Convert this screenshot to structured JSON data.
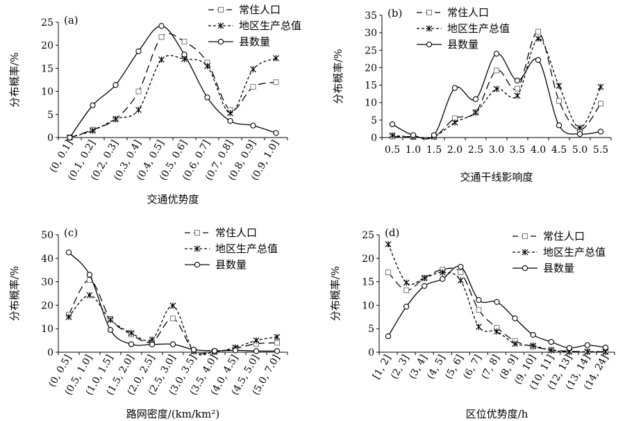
{
  "chart_data": [
    {
      "type": "line",
      "panel_label": "(a)",
      "xlabel": "交通优势度",
      "ylabel": "分布概率/%",
      "ylim": [
        0,
        25
      ],
      "yticks": [
        0,
        5,
        10,
        15,
        20,
        25
      ],
      "categories": [
        "(0, 0.1]",
        "(0.1, 0.2]",
        "(0.2, 0.3]",
        "(0.3, 0.4]",
        "(0.4, 0.5]",
        "(0.5, 0.6]",
        "(0.6, 0.7]",
        "(0.7, 0.8]",
        "(0.8, 0.9]",
        "(0.9, 1.0]"
      ],
      "rotate_ticks": true,
      "legend_position": "top-right",
      "series": [
        {
          "name": "常住人口",
          "values": [
            0,
            1.7,
            4.0,
            10.0,
            21.8,
            20.8,
            16.3,
            6.0,
            11.0,
            12.0
          ]
        },
        {
          "name": "地区生产总值",
          "values": [
            0,
            1.5,
            4.0,
            6.0,
            16.9,
            17.0,
            15.5,
            5.3,
            14.8,
            17.2
          ]
        },
        {
          "name": "县数量",
          "values": [
            0,
            7.0,
            11.4,
            18.7,
            24.2,
            18.0,
            8.7,
            3.6,
            2.6,
            1.0
          ]
        }
      ]
    },
    {
      "type": "line",
      "panel_label": "(b)",
      "xlabel": "交通干线影响度",
      "ylabel": "分布概率/%",
      "ylim": [
        0,
        35
      ],
      "yticks": [
        0,
        5,
        10,
        15,
        20,
        25,
        30,
        35
      ],
      "categories": [
        "0.5",
        "1.0",
        "1.5",
        "2.0",
        "2.5",
        "3.0",
        "3.5",
        "4.0",
        "4.5",
        "5.0",
        "5.5"
      ],
      "rotate_ticks": false,
      "legend_position": "top-left",
      "series": [
        {
          "name": "常住人口",
          "values": [
            0.3,
            0.2,
            0.2,
            5.5,
            7.2,
            19.2,
            14.0,
            30.3,
            10.5,
            2.2,
            9.7
          ]
        },
        {
          "name": "地区生产总值",
          "values": [
            0.6,
            0.2,
            0.3,
            4.3,
            7.2,
            13.9,
            12.0,
            28.3,
            14.8,
            2.8,
            14.5
          ]
        },
        {
          "name": "县数量",
          "values": [
            3.8,
            0.7,
            0.7,
            14.2,
            11.0,
            24.0,
            16.3,
            22.2,
            3.5,
            1.0,
            1.7
          ]
        }
      ]
    },
    {
      "type": "line",
      "panel_label": "(c)",
      "xlabel": "路网密度/(km/km²)",
      "ylabel": "分布概率/%",
      "ylim": [
        0,
        50
      ],
      "yticks": [
        0,
        10,
        20,
        30,
        40,
        50
      ],
      "categories": [
        "(0, 0.5]",
        "(0.5, 1.0]",
        "(1.0, 1.5]",
        "(1.5, 2.0]",
        "(2.0, 2.5]",
        "(2.5, 3.0]",
        "(3.0, 3.5]",
        "(3.5, 4.0]",
        "(4.0, 4.5]",
        "(4.5, 5.0]",
        "(5.0, 7.0]"
      ],
      "rotate_ticks": true,
      "legend_position": "top-right",
      "series": [
        {
          "name": "常住人口",
          "values": [
            16.0,
            30.8,
            14.2,
            7.6,
            4.4,
            14.4,
            0.6,
            0.2,
            1.6,
            3.6,
            4.0
          ]
        },
        {
          "name": "地区生产总值",
          "values": [
            15.0,
            24.3,
            13.8,
            8.2,
            5.4,
            19.8,
            0.4,
            0.2,
            2.0,
            5.0,
            6.5
          ]
        },
        {
          "name": "县数量",
          "values": [
            42.5,
            33.0,
            9.5,
            3.4,
            3.3,
            3.4,
            1.1,
            0.6,
            0.8,
            0.5,
            0.5
          ]
        }
      ]
    },
    {
      "type": "line",
      "panel_label": "(d)",
      "xlabel": "区位优势度/h",
      "ylabel": "分布概率/%",
      "ylim": [
        0,
        25
      ],
      "yticks": [
        0,
        5,
        10,
        15,
        20,
        25
      ],
      "categories": [
        "[1, 2]",
        "(2, 3]",
        "(3, 4]",
        "(4, 5]",
        "(5, 6]",
        "(6, 7]",
        "(7, 8]",
        "(8, 9]",
        "(9, 10]",
        "(10, 11]",
        "(12, 13]",
        "(13, 14]",
        "(14, 24]"
      ],
      "rotate_ticks": true,
      "legend_position": "top-right",
      "series": [
        {
          "name": "常住人口",
          "values": [
            17.0,
            13.2,
            15.8,
            17.6,
            17.0,
            9.0,
            5.2,
            2.4,
            1.2,
            0.5,
            0.2,
            0.1,
            0.1
          ]
        },
        {
          "name": "地区生产总值",
          "values": [
            23.0,
            14.8,
            15.8,
            17.0,
            15.3,
            5.4,
            4.4,
            1.8,
            1.4,
            0.4,
            0.1,
            0.1,
            0.1
          ]
        },
        {
          "name": "县数量",
          "values": [
            3.4,
            9.7,
            14.1,
            15.6,
            18.2,
            11.1,
            10.7,
            7.2,
            3.7,
            2.2,
            0.9,
            1.5,
            1.0
          ]
        }
      ]
    }
  ],
  "styles": {
    "line_color": "#000000",
    "marker_fill": "#ffffff",
    "series_styles": [
      "long-dash-square",
      "short-dash-star",
      "solid-circle"
    ]
  }
}
